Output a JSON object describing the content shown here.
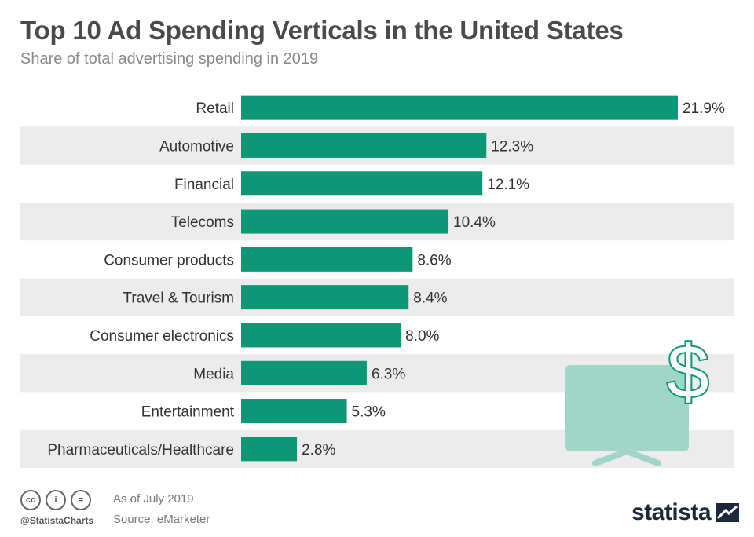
{
  "header": {
    "title": "Top 10 Ad Spending Verticals in the United States",
    "subtitle": "Share of total advertising spending in 2019"
  },
  "chart_data": {
    "type": "bar",
    "orientation": "horizontal",
    "title": "Top 10 Ad Spending Verticals in the United States",
    "subtitle": "Share of total advertising spending in 2019",
    "unit": "%",
    "categories": [
      "Retail",
      "Automotive",
      "Financial",
      "Telecoms",
      "Consumer products",
      "Travel & Tourism",
      "Consumer electronics",
      "Media",
      "Entertainment",
      "Pharmaceuticals/Healthcare"
    ],
    "values": [
      21.9,
      12.3,
      12.1,
      10.4,
      8.6,
      8.4,
      8.0,
      6.3,
      5.3,
      2.8
    ],
    "value_labels": [
      "21.9%",
      "12.3%",
      "12.1%",
      "10.4%",
      "8.6%",
      "8.4%",
      "8.0%",
      "6.3%",
      "5.3%",
      "2.8%"
    ],
    "xlim": [
      0,
      21.9
    ],
    "grid": false,
    "legend": "none",
    "bar_color": "#0f9677",
    "alt_row_color": "#ececec"
  },
  "illustration": {
    "screen_color": "#a0d5c8",
    "dollar_sign": "$",
    "dollar_color": "#0f9677"
  },
  "footer": {
    "license_icons": [
      "cc-icon",
      "by-icon",
      "nd-icon"
    ],
    "license_glyphs": [
      "cc",
      "i",
      "="
    ],
    "handle": "@StatistaCharts",
    "as_of": "As of July 2019",
    "source": "Source: eMarketer",
    "brand": "statista",
    "brand_color": "#1b2a3a"
  }
}
